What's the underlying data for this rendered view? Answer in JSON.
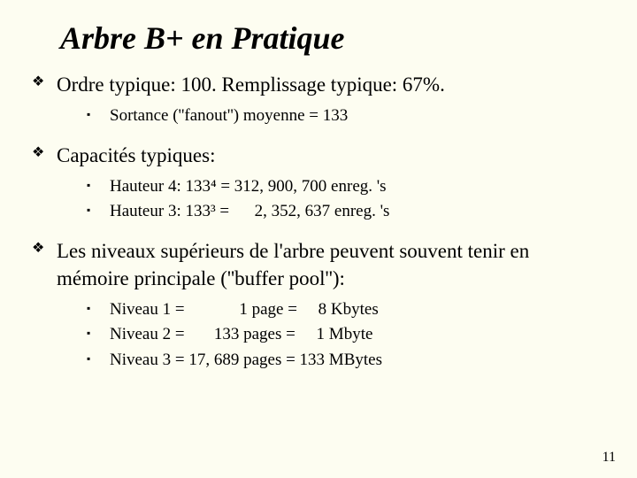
{
  "title": "Arbre B+ en Pratique",
  "bullets": {
    "b1": {
      "text": "Ordre typique: 100.  Remplissage typique: 67%.",
      "sub": [
        "Sortance (''fanout'') moyenne = 133"
      ]
    },
    "b2": {
      "text": "Capacités typiques:",
      "sub": [
        "Hauteur 4: 133⁴ = 312, 900, 700 enreg. 's",
        "Hauteur 3: 133³ =      2, 352, 637 enreg. 's"
      ]
    },
    "b3": {
      "text": "Les niveaux supérieurs de l'arbre peuvent souvent tenir en mémoire principale (''buffer pool''):",
      "sub": [
        "Niveau 1 =             1 page  =     8 Kbytes",
        "Niveau 2 =       133 pages =     1 Mbyte",
        "Niveau 3 = 17, 689 pages = 133 MBytes"
      ]
    }
  },
  "pageNumber": "11"
}
